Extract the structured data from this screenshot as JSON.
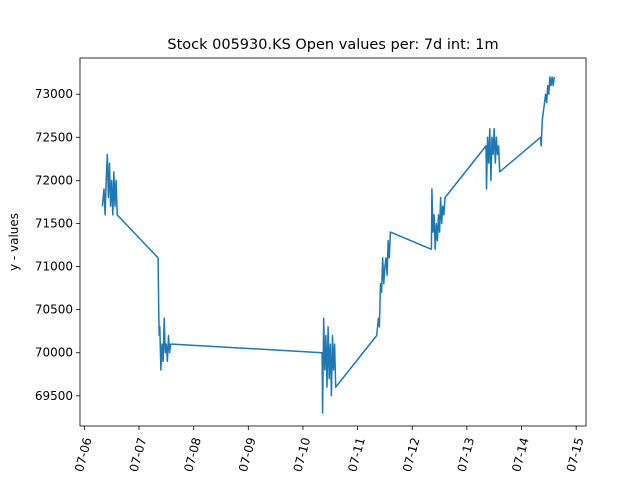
{
  "chart_data": {
    "type": "line",
    "title": "Stock 005930.KS Open values per: 7d int: 1m",
    "xlabel": "",
    "ylabel": "y - values",
    "x_ticks": [
      "07-06",
      "07-07",
      "07-08",
      "07-09",
      "07-10",
      "07-11",
      "07-12",
      "07-13",
      "07-14",
      "07-15"
    ],
    "y_ticks": [
      "69500",
      "70000",
      "70500",
      "71000",
      "71500",
      "72000",
      "72500",
      "73000"
    ],
    "xlim": [
      -0.08,
      9.18
    ],
    "ylim": [
      69150,
      73420
    ],
    "grid": false,
    "colors": {
      "line": "#1f77b4"
    },
    "series": [
      {
        "x": [
          0.33,
          0.36,
          0.38,
          0.4,
          0.42,
          0.44,
          0.46,
          0.48,
          0.5,
          0.52,
          0.54,
          0.56,
          0.58,
          0.6,
          1.35,
          1.36,
          1.37,
          1.38,
          1.4,
          1.42,
          1.44,
          1.46,
          1.48,
          1.5,
          1.52,
          1.54,
          1.56,
          1.58,
          1.6,
          4.35,
          4.36,
          4.38,
          4.4,
          4.42,
          4.44,
          4.46,
          4.48,
          4.5,
          4.52,
          4.54,
          4.56,
          4.58,
          4.6,
          5.35,
          5.38,
          5.4,
          5.42,
          5.44,
          5.46,
          5.48,
          5.5,
          5.52,
          5.54,
          5.56,
          5.58,
          5.6,
          6.35,
          6.36,
          6.38,
          6.4,
          6.42,
          6.44,
          6.46,
          6.48,
          6.5,
          6.52,
          6.54,
          6.56,
          6.58,
          6.6,
          7.35,
          7.36,
          7.38,
          7.4,
          7.42,
          7.44,
          7.46,
          7.48,
          7.5,
          7.52,
          7.54,
          7.56,
          7.58,
          7.6,
          8.35,
          8.36,
          8.38,
          8.4,
          8.42,
          8.44,
          8.46,
          8.48,
          8.5,
          8.52,
          8.54,
          8.56,
          8.58,
          8.6
        ],
        "y": [
          71700,
          71900,
          71600,
          72000,
          72300,
          71800,
          72200,
          71700,
          72000,
          71600,
          72100,
          71700,
          72000,
          71600,
          71100,
          70500,
          70200,
          70300,
          69800,
          70100,
          69900,
          70400,
          70000,
          70100,
          69900,
          70200,
          70000,
          70100,
          70100,
          70000,
          69300,
          70400,
          69800,
          70200,
          69600,
          70300,
          69700,
          70100,
          69500,
          70200,
          69800,
          70100,
          69600,
          70200,
          70400,
          70300,
          70800,
          70700,
          71100,
          70800,
          71000,
          71100,
          70900,
          71300,
          71100,
          71400,
          71200,
          71900,
          71400,
          71600,
          71200,
          71500,
          71300,
          71600,
          71400,
          71800,
          71500,
          71700,
          71600,
          71800,
          72400,
          71900,
          72500,
          72200,
          72600,
          72000,
          72500,
          72300,
          72600,
          72200,
          72500,
          72300,
          72400,
          72100,
          72500,
          72400,
          72700,
          72800,
          72900,
          73000,
          72900,
          73100,
          73000,
          73200,
          73100,
          73200,
          73100,
          73200
        ]
      }
    ]
  }
}
